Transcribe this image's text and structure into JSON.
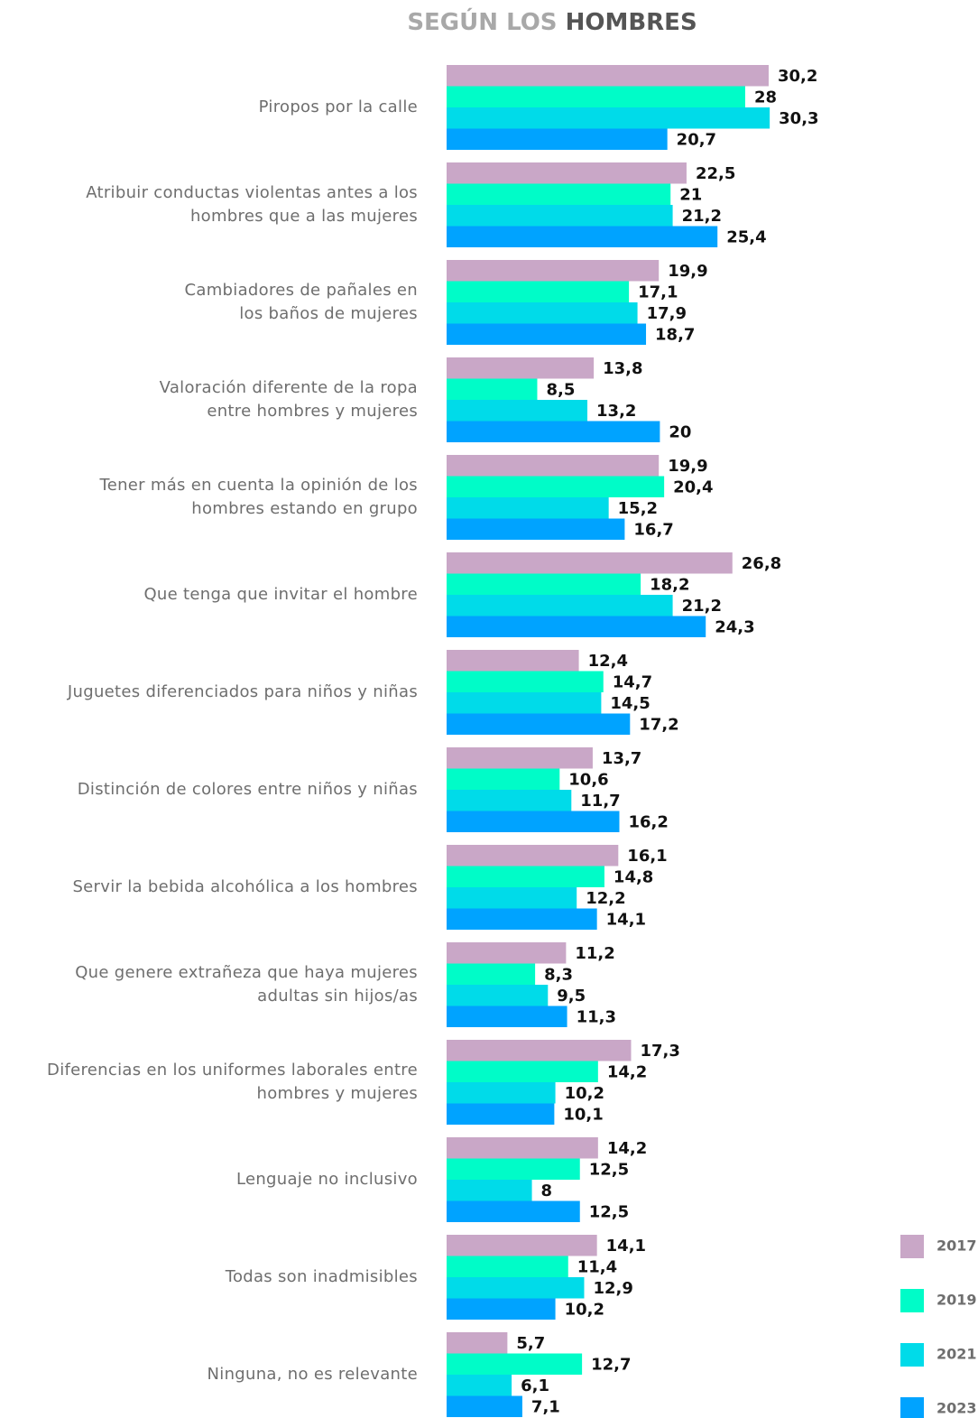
{
  "chart_data": {
    "type": "bar",
    "orientation": "horizontal",
    "title": [
      "SEGÚN LOS",
      "HOMBRES"
    ],
    "categories": [
      "Piropos por la calle",
      "Atribuir conductas violentas antes a los\nhombres que a las mujeres",
      "Cambiadores de pañales en\nlos baños de mujeres",
      "Valoración diferente de la ropa\nentre hombres y mujeres",
      "Tener más en cuenta la opinión de los\nhombres estando en grupo",
      "Que tenga que invitar el hombre",
      "Juguetes diferenciados para niños y niñas",
      "Distinción de colores entre niños y niñas",
      "Servir la bebida alcohólica a los hombres",
      "Que genere extrañeza que haya mujeres\nadultas sin hijos/as",
      "Diferencias en los uniformes laborales entre\nhombres y mujeres",
      "Lenguaje no inclusivo",
      "Todas son inadmisibles",
      "Ninguna, no es relevante"
    ],
    "series": [
      {
        "name": "2017",
        "color": "#c9a7c7",
        "values": [
          30.2,
          22.5,
          19.9,
          13.8,
          19.9,
          26.8,
          12.4,
          13.7,
          16.1,
          11.2,
          17.3,
          14.2,
          14.1,
          5.7
        ],
        "value_labels": [
          "30,2",
          "22,5",
          "19,9",
          "13,8",
          "19,9",
          "26,8",
          "12,4",
          "13,7",
          "16,1",
          "11,2",
          "17,3",
          "14,2",
          "14,1",
          "5,7"
        ]
      },
      {
        "name": "2019",
        "color": "#00fcc8",
        "values": [
          28,
          21,
          17.1,
          8.5,
          20.4,
          18.2,
          14.7,
          10.6,
          14.8,
          8.3,
          14.2,
          12.5,
          11.4,
          12.7
        ],
        "value_labels": [
          "28",
          "21",
          "17,1",
          "8,5",
          "20,4",
          "18,2",
          "14,7",
          "10,6",
          "14,8",
          "8,3",
          "14,2",
          "12,5",
          "11,4",
          "12,7"
        ]
      },
      {
        "name": "2021",
        "color": "#00dbe9",
        "values": [
          30.3,
          21.2,
          17.9,
          13.2,
          15.2,
          21.2,
          14.5,
          11.7,
          12.2,
          9.5,
          10.2,
          8,
          12.9,
          6.1
        ],
        "value_labels": [
          "30,3",
          "21,2",
          "17,9",
          "13,2",
          "15,2",
          "21,2",
          "14,5",
          "11,7",
          "12,2",
          "9,5",
          "10,2",
          "8",
          "12,9",
          "6,1"
        ]
      },
      {
        "name": "2023",
        "color": "#00a3ff",
        "values": [
          20.7,
          25.4,
          18.7,
          20,
          16.7,
          24.3,
          17.2,
          16.2,
          14.1,
          11.3,
          10.1,
          12.5,
          10.2,
          7.1
        ],
        "value_labels": [
          "20,7",
          "25,4",
          "18,7",
          "20",
          "16,7",
          "24,3",
          "17,2",
          "16,2",
          "14,1",
          "11,3",
          "10,1",
          "12,5",
          "10,2",
          "7,1"
        ]
      }
    ]
  }
}
